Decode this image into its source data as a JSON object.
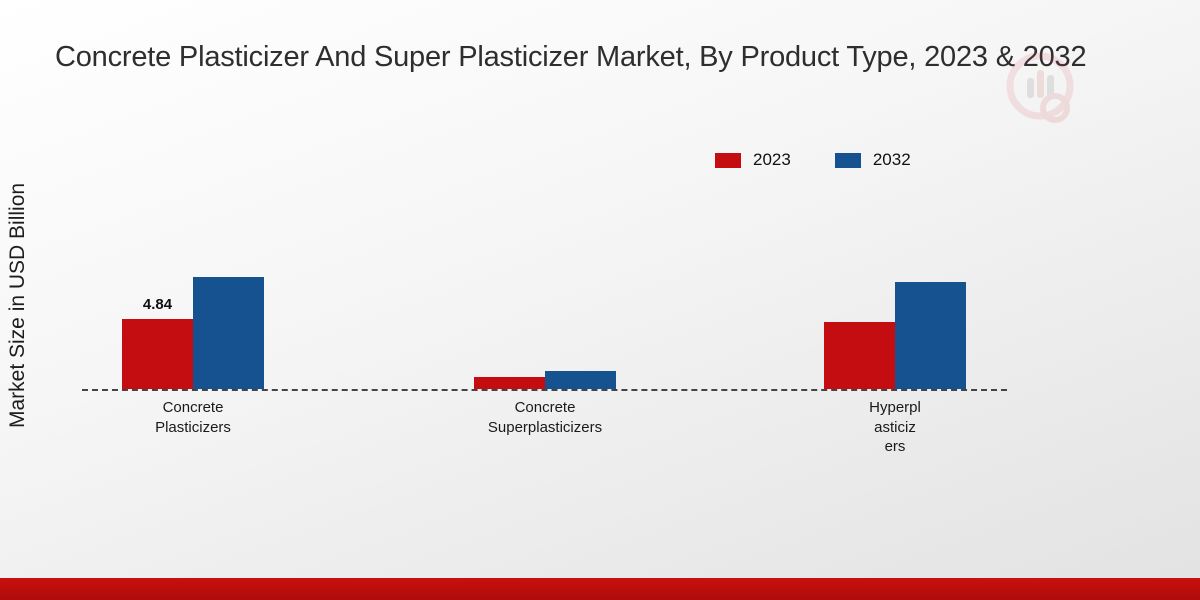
{
  "title": "Concrete Plasticizer And Super Plasticizer Market, By Product Type, 2023 & 2032",
  "y_axis_label": "Market Size in USD Billion",
  "legend": [
    {
      "label": "2023",
      "color": "#c40d11"
    },
    {
      "label": "2032",
      "color": "#15528f"
    }
  ],
  "colors": {
    "series_2023": "#c40d11",
    "series_2032": "#15528f",
    "bottom_strip": "#c00e0d"
  },
  "chart_data": {
    "type": "bar",
    "title": "Concrete Plasticizer And Super Plasticizer Market, By Product Type, 2023 & 2032",
    "xlabel": "",
    "ylabel": "Market Size in USD Billion",
    "categories": [
      "Concrete Plasticizers",
      "Concrete Superplasticizers",
      "Hyperplasticizers"
    ],
    "categories_display": [
      "Concrete\nPlasticizers",
      "Concrete\nSuperplasticizers",
      "Hyperpl\nasticiz\ners"
    ],
    "series": [
      {
        "name": "2023",
        "color": "#c40d11",
        "values": [
          4.84,
          0.8,
          4.6
        ]
      },
      {
        "name": "2032",
        "color": "#15528f",
        "values": [
          7.7,
          1.25,
          7.4
        ]
      }
    ],
    "data_labels": [
      {
        "series": "2023",
        "category": "Concrete Plasticizers",
        "text": "4.84"
      }
    ],
    "ylim": [
      0,
      9
    ],
    "grid": false,
    "baseline_style": "dashed",
    "legend_position": "top-right"
  }
}
